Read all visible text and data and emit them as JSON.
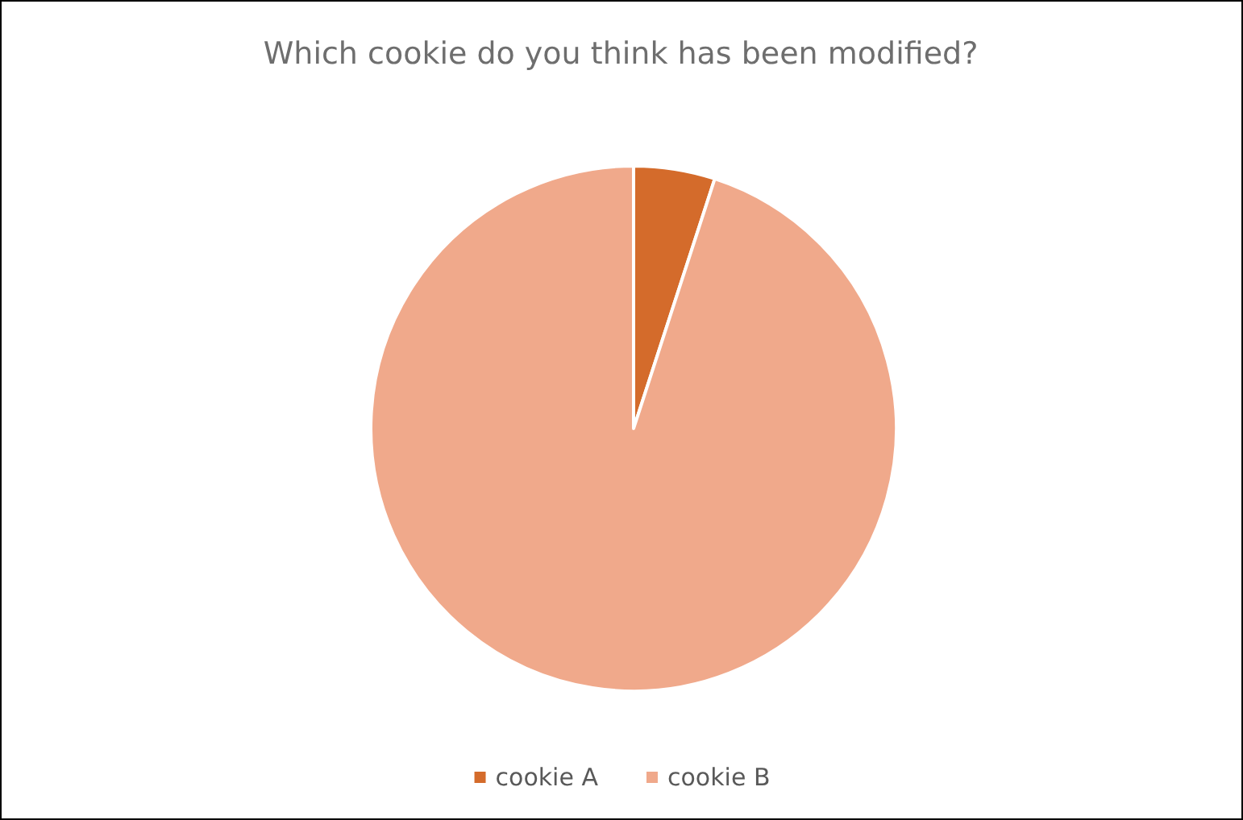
{
  "chart_data": {
    "type": "pie",
    "title": "Which cookie do you think has been modified?",
    "categories": [
      "cookie A",
      "cookie B"
    ],
    "values": [
      5,
      95
    ],
    "colors": [
      "#d46b2b",
      "#f0a98b"
    ],
    "legend": "bottom"
  }
}
